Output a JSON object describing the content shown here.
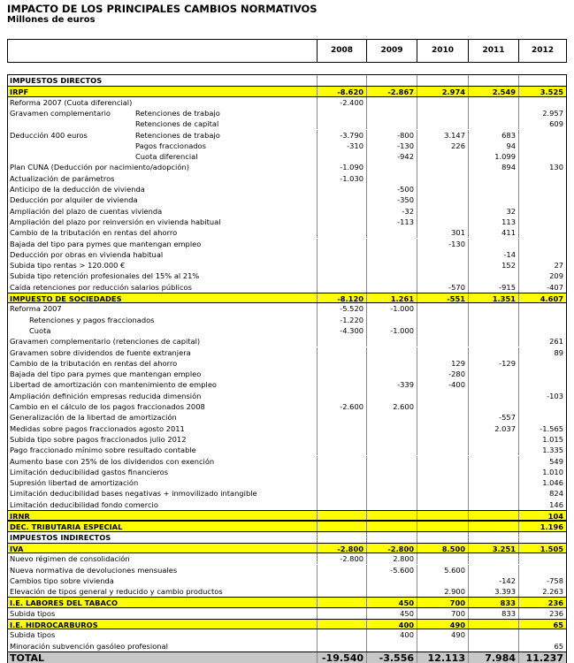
{
  "header": {
    "title": "IMPACTO DE LOS PRINCIPALES CAMBIOS NORMATIVOS",
    "subtitle": "Millones de euros"
  },
  "table": {
    "columns": [
      "2008",
      "2009",
      "2010",
      "2011",
      "2012"
    ],
    "rows": [
      {
        "label": "IMPUESTOS DIRECTOS",
        "section": true,
        "values": [
          null,
          null,
          null,
          null,
          null
        ]
      },
      {
        "label": "IRPF",
        "highlight": true,
        "values": [
          "-8.620",
          "-2.867",
          "2.974",
          "2.549",
          "3.525"
        ]
      },
      {
        "label": "Reforma 2007 (Cuota diferencial)",
        "values": [
          "-2.400",
          null,
          null,
          null,
          null
        ]
      },
      {
        "label": "Gravamen complementario",
        "sublabel": "Retenciones de trabajo",
        "values": [
          null,
          null,
          null,
          null,
          "2.957"
        ]
      },
      {
        "label": null,
        "sublabel": "Retenciones de capital",
        "values": [
          null,
          null,
          null,
          null,
          "609"
        ]
      },
      {
        "label": "Deducción 400 euros",
        "sublabel": "Retenciones de trabajo",
        "values": [
          "-3.790",
          "-800",
          "3.147",
          "683",
          null
        ]
      },
      {
        "label": null,
        "sublabel": "Pagos fraccionados",
        "values": [
          "-310",
          "-130",
          "226",
          "94",
          null
        ]
      },
      {
        "label": null,
        "sublabel": "Cuota diferencial",
        "values": [
          null,
          "-942",
          null,
          "1.099",
          null
        ]
      },
      {
        "label": "Plan CUNA (Deducción por nacimiento/adopción)",
        "values": [
          "-1.090",
          null,
          null,
          "894",
          "130"
        ]
      },
      {
        "label": "Actualización de parámetros",
        "values": [
          "-1.030",
          null,
          null,
          null,
          null
        ]
      },
      {
        "label": "Anticipo de la deducción de vivienda",
        "values": [
          null,
          "-500",
          null,
          null,
          null
        ]
      },
      {
        "label": "Deducción por alquiler de vivienda",
        "values": [
          null,
          "-350",
          null,
          null,
          null
        ]
      },
      {
        "label": "Ampliación del plazo de cuentas vivienda",
        "values": [
          null,
          "-32",
          null,
          "32",
          null
        ]
      },
      {
        "label": "Ampliación del plazo por reinversión en vivienda habitual",
        "values": [
          null,
          "-113",
          null,
          "113",
          null
        ]
      },
      {
        "label": "Cambio de la tributación en rentas del ahorro",
        "values": [
          null,
          null,
          "301",
          "411",
          null
        ]
      },
      {
        "label": "Bajada del tipo para pymes que mantengan empleo",
        "values": [
          null,
          null,
          "-130",
          null,
          null
        ]
      },
      {
        "label": "Deducción por obras en vivienda habitual",
        "values": [
          null,
          null,
          null,
          "-14",
          null
        ]
      },
      {
        "label": "Subida tipo rentas > 120.000 €",
        "values": [
          null,
          null,
          null,
          "152",
          "27"
        ]
      },
      {
        "label": "Subida tipo retención profesionales del 15% al 21%",
        "values": [
          null,
          null,
          null,
          null,
          "209"
        ]
      },
      {
        "label": "Caída retenciones por reducción salarios públicos",
        "values": [
          null,
          null,
          "-570",
          "-915",
          "-407"
        ]
      },
      {
        "label": "IMPUESTO DE SOCIEDADES",
        "highlight": true,
        "values": [
          "-8.120",
          "1.261",
          "-551",
          "1.351",
          "4.607"
        ]
      },
      {
        "label": "Reforma 2007",
        "values": [
          "-5.520",
          "-1.000",
          null,
          null,
          null
        ]
      },
      {
        "label": "Retenciones y pagos fraccionados",
        "indent": true,
        "values": [
          "-1.220",
          null,
          null,
          null,
          null
        ]
      },
      {
        "label": "Cuota",
        "indent": true,
        "values": [
          "-4.300",
          "-1.000",
          null,
          null,
          null
        ]
      },
      {
        "label": "Gravamen complementario (retenciones de capital)",
        "values": [
          null,
          null,
          null,
          null,
          "261"
        ]
      },
      {
        "label": "Gravamen sobre dividendos de fuente extranjera",
        "values": [
          null,
          null,
          null,
          null,
          "89"
        ]
      },
      {
        "label": "Cambio de la tributación en rentas del ahorro",
        "values": [
          null,
          null,
          "129",
          "-129",
          null
        ]
      },
      {
        "label": "Bajada del tipo para pymes que mantengan empleo",
        "values": [
          null,
          null,
          "-280",
          null,
          null
        ]
      },
      {
        "label": "Libertad de amortización con mantenimiento de empleo",
        "values": [
          null,
          "-339",
          "-400",
          null,
          null
        ]
      },
      {
        "label": "Ampliación definición empresas reducida dimensión",
        "values": [
          null,
          null,
          null,
          null,
          "-103"
        ]
      },
      {
        "label": "Cambio en el cálculo de los pagos fraccionados 2008",
        "values": [
          "-2.600",
          "2.600",
          null,
          null,
          null
        ]
      },
      {
        "label": "Generalización de la libertad de amortización",
        "values": [
          null,
          null,
          null,
          "-557",
          null
        ]
      },
      {
        "label": "Medidas sobre pagos fraccionados agosto 2011",
        "values": [
          null,
          null,
          null,
          "2.037",
          "-1.565"
        ]
      },
      {
        "label": "Subida tipo sobre pagos fraccionados julio 2012",
        "values": [
          null,
          null,
          null,
          null,
          "1.015"
        ]
      },
      {
        "label": "Pago fraccionado mínimo sobre resultado contable",
        "values": [
          null,
          null,
          null,
          null,
          "1.335"
        ]
      },
      {
        "label": "Aumento base con 25% de los dividendos con exención",
        "values": [
          null,
          null,
          null,
          null,
          "549"
        ]
      },
      {
        "label": "Limitación deducibilidad gastos financieros",
        "values": [
          null,
          null,
          null,
          null,
          "1.010"
        ]
      },
      {
        "label": "Supresión libertad de amortización",
        "values": [
          null,
          null,
          null,
          null,
          "1.046"
        ]
      },
      {
        "label": "Limitación deducibilidad bases negativas + inmovilizado intangible",
        "values": [
          null,
          null,
          null,
          null,
          "824"
        ]
      },
      {
        "label": "Limitación deducibilidad fondo comercio",
        "values": [
          null,
          null,
          null,
          null,
          "146"
        ]
      },
      {
        "label": "IRNR",
        "highlight": true,
        "values": [
          null,
          null,
          null,
          null,
          "104"
        ]
      },
      {
        "label": "DEC. TRIBUTARIA ESPECIAL",
        "highlight": true,
        "values": [
          null,
          null,
          null,
          null,
          "1.196"
        ]
      },
      {
        "label": "IMPUESTOS INDIRECTOS",
        "section": true,
        "values": [
          null,
          null,
          null,
          null,
          null
        ]
      },
      {
        "label": "IVA",
        "highlight": true,
        "values": [
          "-2.800",
          "-2.800",
          "8.500",
          "3.251",
          "1.505"
        ]
      },
      {
        "label": "Nuevo régimen de consolidación",
        "values": [
          "-2.800",
          "2.800",
          null,
          null,
          null
        ]
      },
      {
        "label": "Nueva normativa de devoluciones mensuales",
        "values": [
          null,
          "-5.600",
          "5.600",
          null,
          null
        ]
      },
      {
        "label": "Cambios tipo sobre vivienda",
        "values": [
          null,
          null,
          null,
          "-142",
          "-758"
        ]
      },
      {
        "label": "Elevación de tipos general y reducido y cambio productos",
        "values": [
          null,
          null,
          "2.900",
          "3.393",
          "2.263"
        ]
      },
      {
        "label": "I.E. LABORES DEL TABACO",
        "highlight": true,
        "values": [
          null,
          "450",
          "700",
          "833",
          "236"
        ]
      },
      {
        "label": "Subida tipos",
        "values": [
          null,
          "450",
          "700",
          "833",
          "236"
        ]
      },
      {
        "label": "I.E. HIDROCARBUROS",
        "highlight": true,
        "values": [
          null,
          "400",
          "490",
          null,
          "65"
        ]
      },
      {
        "label": "Subida tipos",
        "values": [
          null,
          "400",
          "490",
          null,
          null
        ]
      },
      {
        "label": "Minoración subvención gasóleo profesional",
        "values": [
          null,
          null,
          null,
          null,
          "65"
        ]
      },
      {
        "label": "TOTAL",
        "total": true,
        "values": [
          "-19.540",
          "-3.556",
          "12.113",
          "7.984",
          "11.237"
        ]
      }
    ]
  }
}
